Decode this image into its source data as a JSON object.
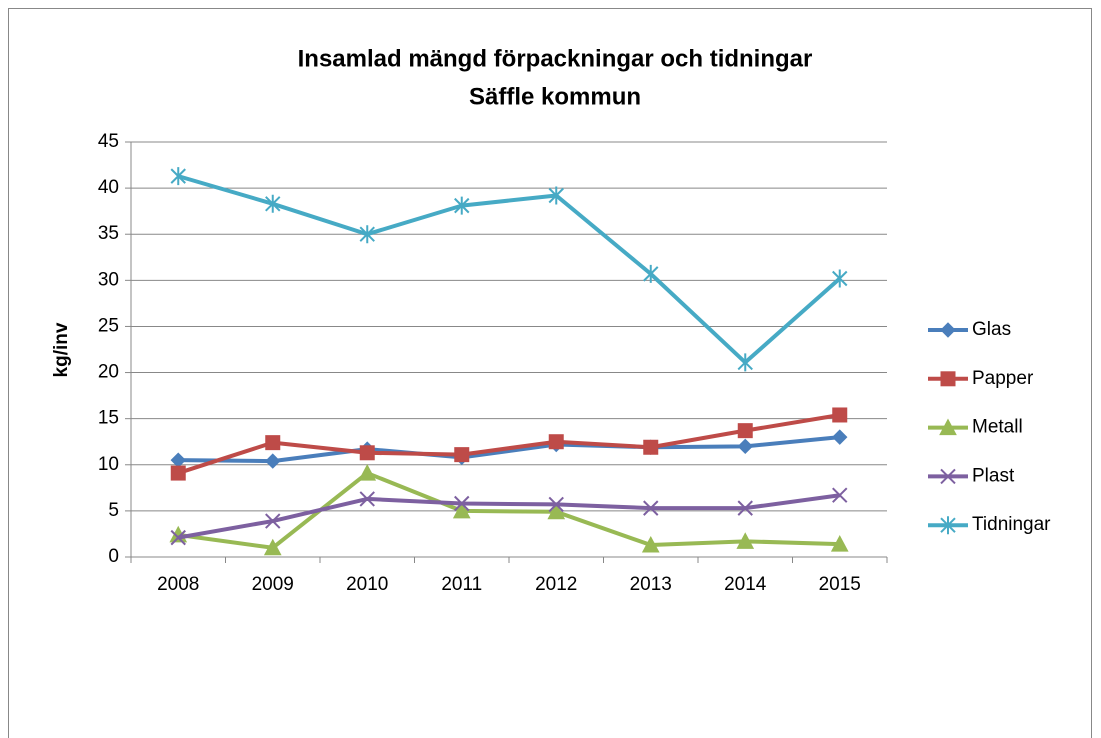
{
  "chart_data": {
    "type": "line",
    "title": [
      "Insamlad mängd förpackningar och tidningar",
      "Säffle kommun"
    ],
    "y_label": "kg/inv",
    "categories": [
      "2008",
      "2009",
      "2010",
      "2011",
      "2012",
      "2013",
      "2014",
      "2015"
    ],
    "series": [
      {
        "name": "Glas",
        "color": "#4a7ebb",
        "marker": "diamond",
        "values": [
          10.5,
          10.4,
          11.7,
          10.8,
          12.2,
          11.9,
          12.0,
          13.0
        ]
      },
      {
        "name": "Papper",
        "color": "#be4b48",
        "marker": "square",
        "values": [
          9.1,
          12.4,
          11.3,
          11.1,
          12.5,
          11.9,
          13.7,
          15.4
        ]
      },
      {
        "name": "Metall",
        "color": "#98b954",
        "marker": "triangle",
        "values": [
          2.4,
          1.0,
          9.1,
          5.0,
          4.9,
          1.3,
          1.7,
          1.4
        ]
      },
      {
        "name": "Plast",
        "color": "#7d60a0",
        "marker": "x",
        "values": [
          2.1,
          3.9,
          6.3,
          5.8,
          5.7,
          5.3,
          5.3,
          6.7
        ]
      },
      {
        "name": "Tidningar",
        "color": "#46aac5",
        "marker": "star",
        "values": [
          41.3,
          38.3,
          35.0,
          38.1,
          39.2,
          30.7,
          21.1,
          30.2
        ]
      }
    ],
    "ylim": [
      0,
      45
    ],
    "yticks": [
      0,
      5,
      10,
      15,
      20,
      25,
      30,
      35,
      40,
      45
    ],
    "grid": true,
    "legend": "right"
  }
}
